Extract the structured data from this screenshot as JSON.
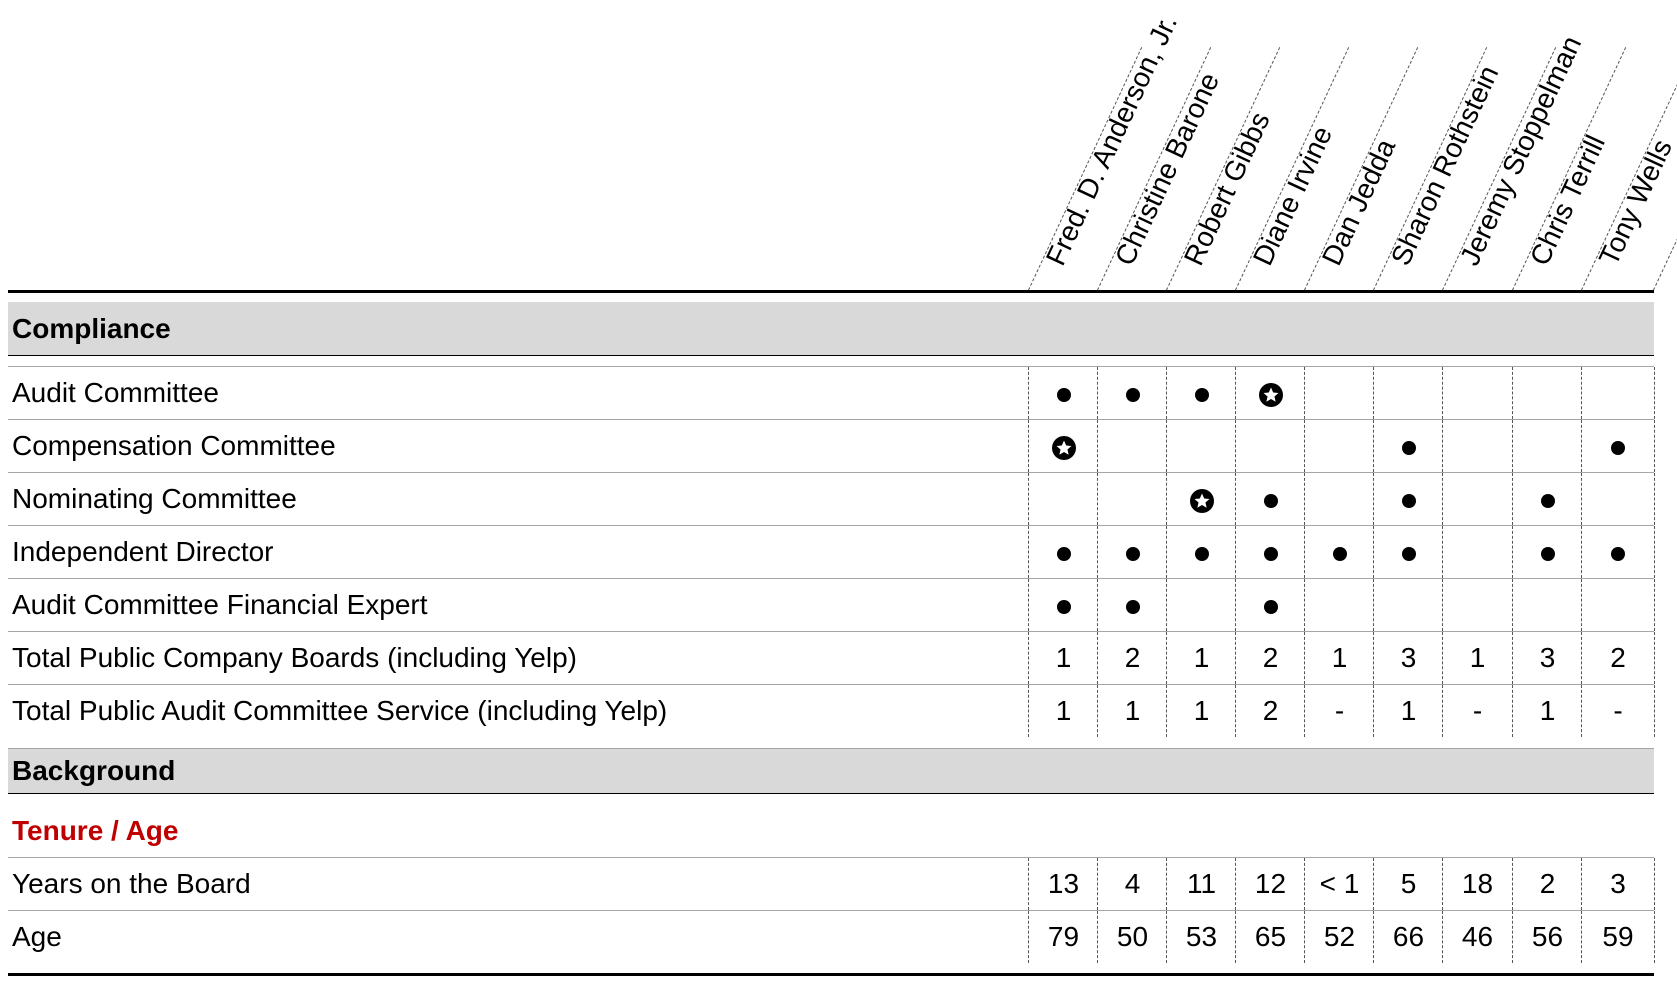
{
  "directors": [
    "Fred. D. Anderson, Jr.",
    "Christine Barone",
    "Robert Gibbs",
    "Diane Irvine",
    "Dan Jedda",
    "Sharon Rothstein",
    "Jeremy Stoppelman",
    "Chris Terrill",
    "Tony Wells"
  ],
  "icons": {
    "member": "filled-circle-icon",
    "chair": "star-in-circle-icon"
  },
  "sections": [
    {
      "title": "Compliance",
      "rows": [
        {
          "label": "Audit Committee",
          "values": [
            "member",
            "member",
            "member",
            "chair",
            "",
            "",
            "",
            "",
            ""
          ]
        },
        {
          "label": "Compensation Committee",
          "values": [
            "chair",
            "",
            "",
            "",
            "",
            "member",
            "",
            "",
            "member"
          ]
        },
        {
          "label": "Nominating Committee",
          "values": [
            "",
            "",
            "chair",
            "member",
            "",
            "member",
            "",
            "member",
            ""
          ]
        },
        {
          "label": "Independent Director",
          "values": [
            "member",
            "member",
            "member",
            "member",
            "member",
            "member",
            "",
            "member",
            "member"
          ]
        },
        {
          "label": "Audit Committee Financial Expert",
          "values": [
            "member",
            "member",
            "",
            "member",
            "",
            "",
            "",
            "",
            ""
          ]
        },
        {
          "label": "Total Public Company Boards (including Yelp)",
          "values": [
            "1",
            "2",
            "1",
            "2",
            "1",
            "3",
            "1",
            "3",
            "2"
          ]
        },
        {
          "label": "Total Public Audit Committee Service (including Yelp)",
          "values": [
            "1",
            "1",
            "1",
            "2",
            "-",
            "1",
            "-",
            "1",
            "-"
          ]
        }
      ]
    },
    {
      "title": "Background",
      "subheading": "Tenure / Age",
      "rows": [
        {
          "label": "Years on the Board",
          "values": [
            "13",
            "4",
            "11",
            "12",
            "< 1",
            "5",
            "18",
            "2",
            "3"
          ]
        },
        {
          "label": "Age",
          "values": [
            "79",
            "50",
            "53",
            "65",
            "52",
            "66",
            "46",
            "56",
            "59"
          ]
        }
      ]
    }
  ],
  "colors": {
    "section_background": "#d9d9d9",
    "subheading": "#c00000",
    "text": "#000000"
  }
}
